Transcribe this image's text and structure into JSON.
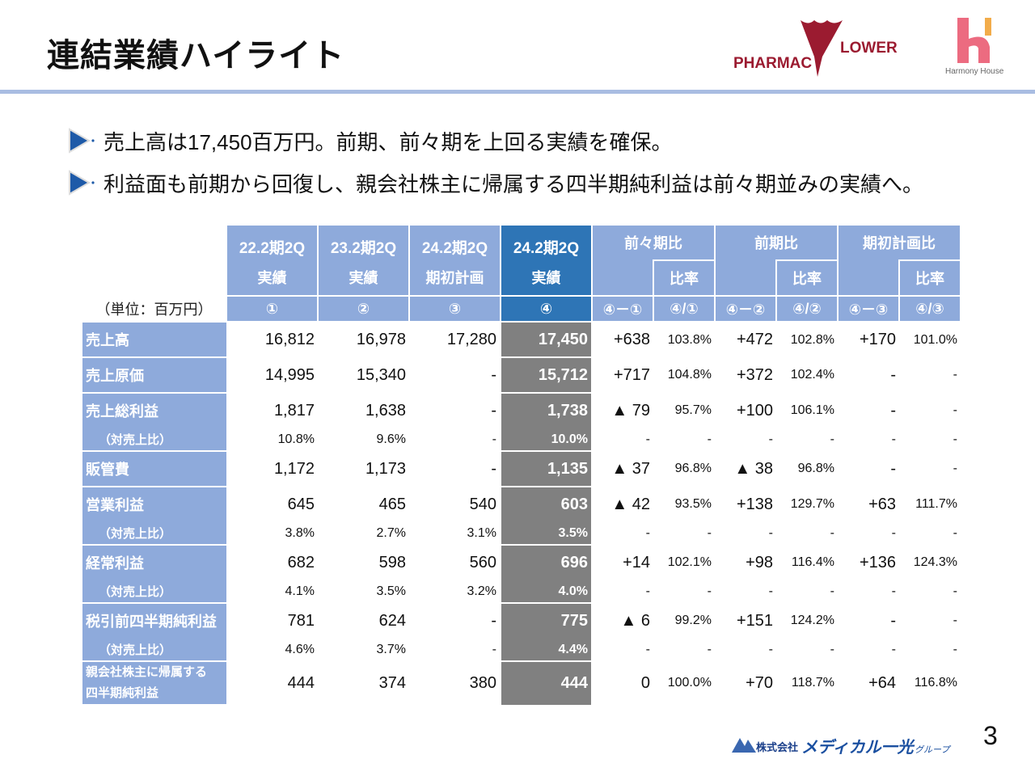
{
  "header": {
    "title": "連結業績ハイライト",
    "logo_pharmacy_flower": "PHARMACY FLOWER",
    "logo_harmony_house": "Harmony House"
  },
  "bullets": [
    "売上高は17,450百万円。前期、前々期を上回る実績を確保。",
    "利益面も前期から回復し、親会社株主に帰属する四半期純利益は前々期並みの実績へ。"
  ],
  "table": {
    "unit": "（単位：百万円）",
    "periods": [
      {
        "period": "22.2期2Q",
        "kind": "実績",
        "marker": "①"
      },
      {
        "period": "23.2期2Q",
        "kind": "実績",
        "marker": "②"
      },
      {
        "period": "24.2期2Q",
        "kind": "期初計画",
        "marker": "③"
      },
      {
        "period": "24.2期2Q",
        "kind": "実績",
        "marker": "④"
      }
    ],
    "comparisons": [
      {
        "title": "前々期比",
        "rate_label": "比率",
        "diff_marker": "④－①",
        "rate_marker": "④/①"
      },
      {
        "title": "前期比",
        "rate_label": "比率",
        "diff_marker": "④－②",
        "rate_marker": "④/②"
      },
      {
        "title": "期初計画比",
        "rate_label": "比率",
        "diff_marker": "④－③",
        "rate_marker": "④/③"
      }
    ],
    "rows": [
      {
        "label": "売上高",
        "values": [
          "16,812",
          "16,978",
          "17,280",
          "17,450"
        ],
        "comp": [
          "+638",
          "103.8%",
          "+472",
          "102.8%",
          "+170",
          "101.0%"
        ]
      },
      {
        "label": "売上原価",
        "values": [
          "14,995",
          "15,340",
          "-",
          "15,712"
        ],
        "comp": [
          "+717",
          "104.8%",
          "+372",
          "102.4%",
          "-",
          "-"
        ]
      },
      {
        "label": "売上総利益",
        "values": [
          "1,817",
          "1,638",
          "-",
          "1,738"
        ],
        "comp": [
          "▲ 79",
          "95.7%",
          "+100",
          "106.1%",
          "-",
          "-"
        ],
        "sub": {
          "label": "（対売上比）",
          "values": [
            "10.8%",
            "9.6%",
            "-",
            "10.0%"
          ],
          "comp": [
            "-",
            "-",
            "-",
            "-",
            "-",
            "-"
          ]
        }
      },
      {
        "label": "販管費",
        "values": [
          "1,172",
          "1,173",
          "-",
          "1,135"
        ],
        "comp": [
          "▲ 37",
          "96.8%",
          "▲ 38",
          "96.8%",
          "-",
          "-"
        ]
      },
      {
        "label": "営業利益",
        "values": [
          "645",
          "465",
          "540",
          "603"
        ],
        "comp": [
          "▲ 42",
          "93.5%",
          "+138",
          "129.7%",
          "+63",
          "111.7%"
        ],
        "sub": {
          "label": "（対売上比）",
          "values": [
            "3.8%",
            "2.7%",
            "3.1%",
            "3.5%"
          ],
          "comp": [
            "-",
            "-",
            "-",
            "-",
            "-",
            "-"
          ]
        }
      },
      {
        "label": "経常利益",
        "values": [
          "682",
          "598",
          "560",
          "696"
        ],
        "comp": [
          "+14",
          "102.1%",
          "+98",
          "116.4%",
          "+136",
          "124.3%"
        ],
        "sub": {
          "label": "（対売上比）",
          "values": [
            "4.1%",
            "3.5%",
            "3.2%",
            "4.0%"
          ],
          "comp": [
            "-",
            "-",
            "-",
            "-",
            "-",
            "-"
          ]
        }
      },
      {
        "label": "税引前四半期純利益",
        "values": [
          "781",
          "624",
          "-",
          "775"
        ],
        "comp": [
          "▲ 6",
          "99.2%",
          "+151",
          "124.2%",
          "-",
          "-"
        ],
        "sub": {
          "label": "（対売上比）",
          "values": [
            "4.6%",
            "3.7%",
            "-",
            "4.4%"
          ],
          "comp": [
            "-",
            "-",
            "-",
            "-",
            "-",
            "-"
          ]
        }
      },
      {
        "label": "親会社株主に帰属する",
        "label2": "四半期純利益",
        "values": [
          "444",
          "374",
          "380",
          "444"
        ],
        "comp": [
          "0",
          "100.0%",
          "+70",
          "118.7%",
          "+64",
          "116.8%"
        ]
      }
    ]
  },
  "footer": {
    "company_logo": "株式会社メディカル一光グループ",
    "page_number": "3"
  },
  "colors": {
    "header_blue": "#8eaadb",
    "highlight_blue": "#2e75b6",
    "highlight_gray": "#808080",
    "rule": "#a9bde2",
    "logo_red": "#9b1b30"
  }
}
